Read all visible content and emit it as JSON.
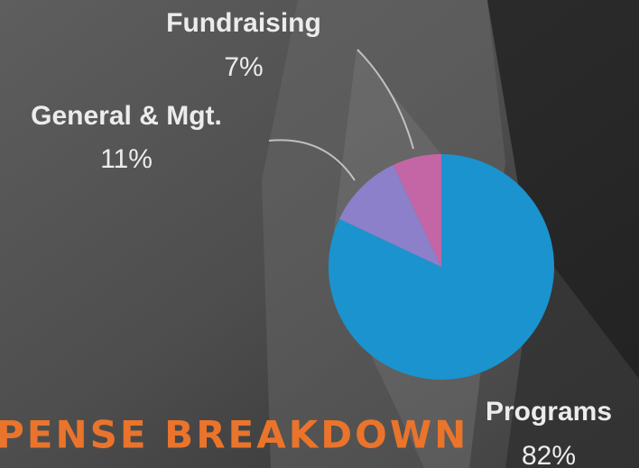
{
  "chart_data": {
    "type": "pie",
    "title": "PENSE BREAKDOWN",
    "categories": [
      "Programs",
      "General & Mgt.",
      "Fundraising"
    ],
    "values": [
      82,
      11,
      7
    ],
    "value_labels": [
      "82%",
      "11%",
      "7%"
    ],
    "colors": [
      "#1b93cf",
      "#8b80c9",
      "#c466a6"
    ]
  }
}
